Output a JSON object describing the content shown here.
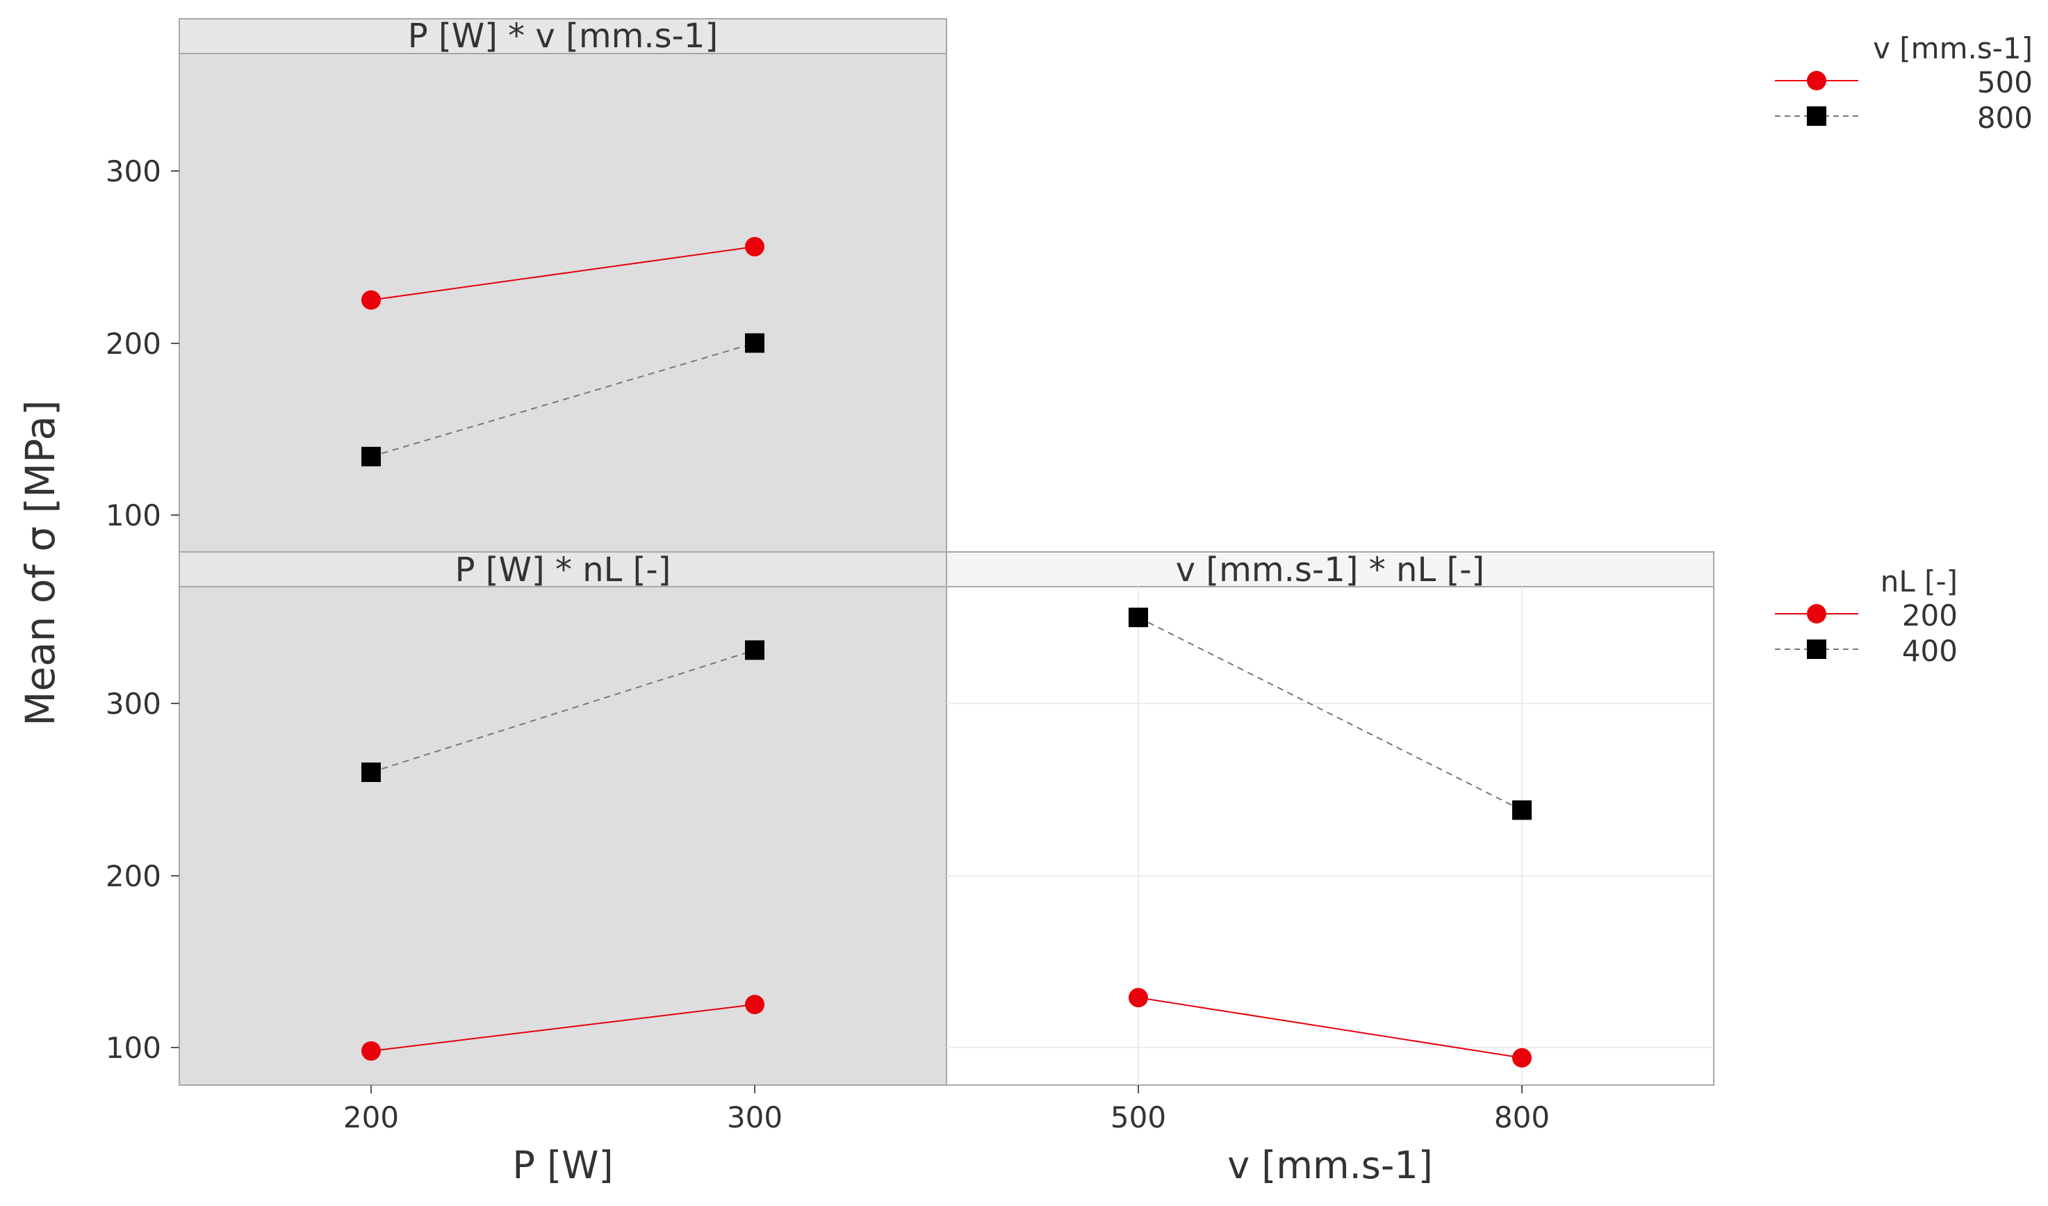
{
  "chart_data": [
    {
      "type": "line",
      "title": "P [W] * v [mm.s-1]",
      "x_variable": "P [W]",
      "categories": [
        "200",
        "300"
      ],
      "ylim": [
        80,
        370
      ],
      "series": [
        {
          "name": "500",
          "marker": "circle",
          "color": "#e8000b",
          "line": "solid",
          "values": [
            225,
            256
          ]
        },
        {
          "name": "800",
          "marker": "square",
          "color": "#000000",
          "line": "dashed",
          "values": [
            134,
            200
          ]
        }
      ],
      "legend_title": "v [mm.s-1]"
    },
    {
      "type": "line",
      "title": "P [W] * nL [-]",
      "x_variable": "P [W]",
      "categories": [
        "200",
        "300"
      ],
      "ylim": [
        78,
        365
      ],
      "series": [
        {
          "name": "200",
          "marker": "circle",
          "color": "#e8000b",
          "line": "solid",
          "values": [
            98,
            125
          ]
        },
        {
          "name": "400",
          "marker": "square",
          "color": "#000000",
          "line": "dashed",
          "values": [
            260,
            331
          ]
        }
      ],
      "legend_title": "nL [-]"
    },
    {
      "type": "line",
      "title": "v [mm.s-1] * nL [-]",
      "x_variable": "v [mm.s-1]",
      "categories": [
        "500",
        "800"
      ],
      "ylim": [
        78,
        365
      ],
      "series": [
        {
          "name": "200",
          "marker": "circle",
          "color": "#e8000b",
          "line": "solid",
          "values": [
            129,
            94
          ]
        },
        {
          "name": "400",
          "marker": "square",
          "color": "#000000",
          "line": "dashed",
          "values": [
            350,
            238
          ]
        }
      ],
      "legend_title": "nL [-]"
    }
  ],
  "axes": {
    "ylabel": "Mean of σ [MPa]",
    "xlabel_left": "P [W]",
    "xlabel_right": "v [mm.s-1]",
    "yticks": [
      "100",
      "200",
      "300"
    ],
    "xticks_left": [
      "200",
      "300"
    ],
    "xticks_right": [
      "500",
      "800"
    ]
  },
  "legends": [
    {
      "title": "v [mm.s-1]",
      "items": [
        {
          "label": "500",
          "marker": "circle",
          "color": "#e8000b"
        },
        {
          "label": "800",
          "marker": "square",
          "color": "#000000"
        }
      ]
    },
    {
      "title": "nL [-]",
      "items": [
        {
          "label": "200",
          "marker": "circle",
          "color": "#e8000b"
        },
        {
          "label": "400",
          "marker": "square",
          "color": "#000000"
        }
      ]
    }
  ],
  "colors": {
    "panel_bg": "#dedede",
    "strip_bg": "#e8e8e8",
    "red": "#e8000b",
    "black": "#000000",
    "grid": "#ececec"
  }
}
